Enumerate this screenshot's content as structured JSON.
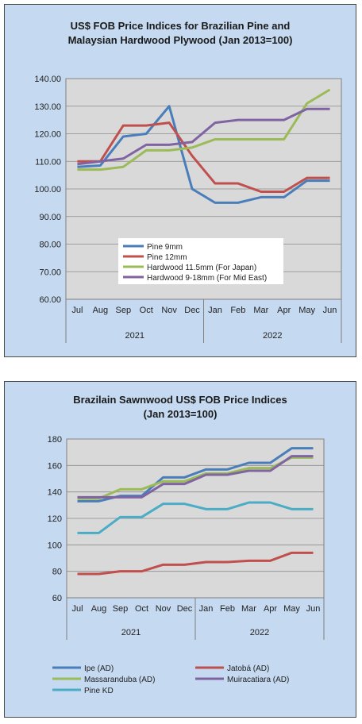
{
  "chart_data": [
    {
      "type": "line",
      "title_line1": "US$ FOB Price Indices for Brazilian Pine and",
      "title_line2": "Malaysian Hardwood Plywood (Jan 2013=100)",
      "categories": [
        "Jul",
        "Aug",
        "Sep",
        "Oct",
        "Nov",
        "Dec",
        "Jan",
        "Feb",
        "Mar",
        "Apr",
        "May",
        "Jun"
      ],
      "year_groups": [
        {
          "label": "2021",
          "count": 6
        },
        {
          "label": "2022",
          "count": 6
        }
      ],
      "ylim": [
        60,
        140
      ],
      "yticks": [
        "60.00",
        "70.00",
        "80.00",
        "90.00",
        "100.00",
        "110.00",
        "120.00",
        "130.00",
        "140.00"
      ],
      "legend_position": "bottom-center inside plot",
      "grid": true,
      "series": [
        {
          "name": "Pine 9mm",
          "color": "#4a7ebb",
          "values": [
            108,
            108.5,
            119,
            120,
            130,
            100,
            95,
            95,
            97,
            97,
            103,
            103
          ]
        },
        {
          "name": "Pine 12mm",
          "color": "#c0504d",
          "values": [
            110,
            110,
            123,
            123,
            124,
            112,
            102,
            102,
            99,
            99,
            104,
            104
          ]
        },
        {
          "name": "Hardwood 11.5mm (For Japan)",
          "color": "#9bbb59",
          "values": [
            107,
            107,
            108,
            114,
            114,
            115,
            118,
            118,
            118,
            118,
            131,
            136
          ]
        },
        {
          "name": "Hardwood 9-18mm (For Mid East)",
          "color": "#8064a2",
          "values": [
            109,
            110,
            111,
            116,
            116,
            117,
            124,
            125,
            125,
            125,
            129,
            129
          ]
        }
      ]
    },
    {
      "type": "line",
      "title_line1": "Brazilain Sawnwood US$ FOB Price Indices",
      "title_line2": "(Jan 2013=100)",
      "categories": [
        "Jul",
        "Aug",
        "Sep",
        "Oct",
        "Nov",
        "Dec",
        "Jan",
        "Feb",
        "Mar",
        "Apr",
        "May",
        "Jun"
      ],
      "year_groups": [
        {
          "label": "2021",
          "count": 6
        },
        {
          "label": "2022",
          "count": 6
        }
      ],
      "ylim": [
        60,
        180
      ],
      "yticks": [
        "60",
        "80",
        "100",
        "120",
        "140",
        "160",
        "180"
      ],
      "legend_position": "bottom",
      "grid": true,
      "series": [
        {
          "name": "Ipe (AD)",
          "color": "#4a7ebb",
          "values": [
            133,
            133,
            137,
            137,
            151,
            151,
            157,
            157,
            162,
            162,
            173,
            173
          ]
        },
        {
          "name": "Jatobá (AD)",
          "color": "#c0504d",
          "values": [
            78,
            78,
            80,
            80,
            85,
            85,
            87,
            87,
            88,
            88,
            94,
            94
          ]
        },
        {
          "name": "Massaranduba (AD)",
          "color": "#9bbb59",
          "values": [
            135,
            135,
            142,
            142,
            148,
            148,
            154,
            154,
            158,
            158,
            166,
            166
          ]
        },
        {
          "name": "Muiracatiara (AD)",
          "color": "#8064a2",
          "values": [
            136,
            136,
            136,
            136,
            146,
            146,
            153,
            153,
            156,
            156,
            167,
            167
          ]
        },
        {
          "name": "Pine KD",
          "color": "#4bacc6",
          "values": [
            109,
            109,
            121,
            121,
            131,
            131,
            127,
            127,
            132,
            132,
            127,
            127
          ]
        }
      ]
    }
  ]
}
